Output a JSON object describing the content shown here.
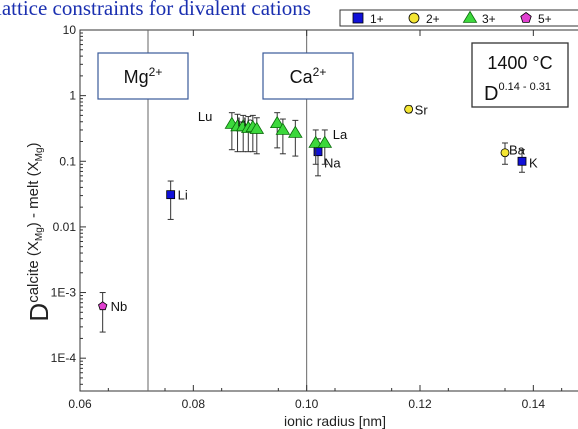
{
  "chart_data": {
    "type": "scatter",
    "title": "lattice constraints for divalent cations",
    "xlabel": "ionic radius [nm]",
    "ylabel": {
      "main": "D",
      "sup": "calcite (X",
      "sup_sub1": "Mg",
      "sup_mid": ") - melt (X",
      "sup_sub2": "Mg",
      "sup_end": ")"
    },
    "xlim": [
      0.06,
      0.15
    ],
    "ylim_log10": [
      -4.5,
      1
    ],
    "x_scale": "linear",
    "y_scale": "log",
    "x_ticks": [
      {
        "value": 0.06,
        "label": "0.06"
      },
      {
        "value": 0.08,
        "label": "0.08"
      },
      {
        "value": 0.1,
        "label": "0.10"
      },
      {
        "value": 0.12,
        "label": "0.12"
      },
      {
        "value": 0.14,
        "label": "0.14"
      }
    ],
    "y_ticks": [
      {
        "value": 10,
        "label": "10"
      },
      {
        "value": 1,
        "label": "1"
      },
      {
        "value": 0.1,
        "label": "0.1"
      },
      {
        "value": 0.01,
        "label": "0.01"
      },
      {
        "value": 0.001,
        "label": "1E-3"
      },
      {
        "value": 0.0001,
        "label": "1E-4"
      }
    ],
    "vertical_lines": [
      {
        "x": 0.072,
        "label": "Mg",
        "charge": "2+"
      },
      {
        "x": 0.1,
        "label": "Ca",
        "charge": "2+"
      }
    ],
    "conditions": {
      "temperature": "1400",
      "unit": "°C",
      "d_label": "D",
      "d_range": "0.14 - 0.31"
    },
    "legend": {
      "placement": "top-right",
      "entries": [
        {
          "name": "1+",
          "marker": "square",
          "color": "#1010d8"
        },
        {
          "name": "2+",
          "marker": "circle",
          "color": "#f4e633"
        },
        {
          "name": "3+",
          "marker": "triangle",
          "color": "#3cd83c"
        },
        {
          "name": "5+",
          "marker": "pentagon",
          "color": "#e040d0"
        }
      ]
    },
    "series": [
      {
        "name": "1+",
        "marker": "square",
        "color": "#1010d8",
        "points": [
          {
            "x": 0.076,
            "y": 0.031,
            "err": [
              0.013,
              0.05
            ],
            "label": "Li"
          },
          {
            "x": 0.102,
            "y": 0.14,
            "err": [
              0.06,
              0.22
            ],
            "label": "Na"
          },
          {
            "x": 0.138,
            "y": 0.1,
            "err": [
              0.068,
              0.15
            ],
            "label": "K"
          }
        ]
      },
      {
        "name": "2+",
        "marker": "circle",
        "color": "#f4e633",
        "points": [
          {
            "x": 0.118,
            "y": 0.62,
            "err": [
              0.55,
              0.7
            ],
            "label": "Sr"
          },
          {
            "x": 0.135,
            "y": 0.135,
            "err": [
              0.09,
              0.19
            ],
            "label": "Ba"
          }
        ]
      },
      {
        "name": "3+",
        "marker": "triangle",
        "color": "#3cd83c",
        "points": [
          {
            "x": 0.0868,
            "y": 0.37,
            "err": [
              0.15,
              0.55
            ],
            "label": "Lu"
          },
          {
            "x": 0.0878,
            "y": 0.34,
            "err": [
              0.14,
              0.52
            ],
            "label": ""
          },
          {
            "x": 0.0888,
            "y": 0.34,
            "err": [
              0.14,
              0.5
            ],
            "label": "Ho"
          },
          {
            "x": 0.0897,
            "y": 0.32,
            "err": [
              0.14,
              0.48
            ],
            "label": ""
          },
          {
            "x": 0.0905,
            "y": 0.33,
            "err": [
              0.14,
              0.5
            ],
            "label": ""
          },
          {
            "x": 0.0912,
            "y": 0.31,
            "err": [
              0.13,
              0.46
            ],
            "label": ""
          },
          {
            "x": 0.0948,
            "y": 0.38,
            "err": [
              0.16,
              0.55
            ],
            "label": ""
          },
          {
            "x": 0.0958,
            "y": 0.3,
            "err": [
              0.13,
              0.44
            ],
            "label": ""
          },
          {
            "x": 0.098,
            "y": 0.27,
            "err": [
              0.12,
              0.42
            ],
            "label": ""
          },
          {
            "x": 0.1016,
            "y": 0.19,
            "err": [
              0.09,
              0.3
            ],
            "label": ""
          },
          {
            "x": 0.1032,
            "y": 0.19,
            "err": [
              0.09,
              0.3
            ],
            "label": "La"
          }
        ]
      },
      {
        "name": "5+",
        "marker": "pentagon",
        "color": "#e040d0",
        "points": [
          {
            "x": 0.064,
            "y": 0.00062,
            "err": [
              0.00025,
              0.001
            ],
            "label": "Nb"
          }
        ]
      }
    ]
  }
}
